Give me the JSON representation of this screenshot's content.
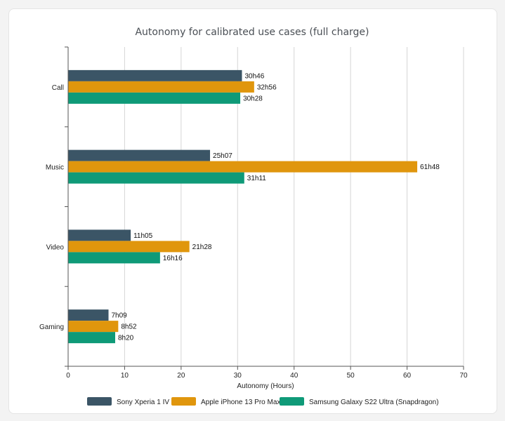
{
  "chart_data": {
    "type": "bar",
    "orientation": "horizontal",
    "title": "Autonomy for calibrated use cases (full charge)",
    "xlabel": "Autonomy (Hours)",
    "ylabel": "",
    "xlim": [
      0,
      70
    ],
    "x_ticks": [
      0,
      10,
      20,
      30,
      40,
      50,
      60,
      70
    ],
    "grid": "vertical",
    "legend_position": "bottom",
    "categories": [
      "Call",
      "Music",
      "Video",
      "Gaming"
    ],
    "series": [
      {
        "name": "Sony Xperia 1 IV",
        "color": "#3b5566",
        "values": [
          30.77,
          25.12,
          11.08,
          7.15
        ],
        "labels": [
          "30h46",
          "25h07",
          "11h05",
          "7h09"
        ]
      },
      {
        "name": "Apple iPhone 13 Pro Max",
        "color": "#e0960d",
        "values": [
          32.93,
          61.8,
          21.47,
          8.87
        ],
        "labels": [
          "32h56",
          "61h48",
          "21h28",
          "8h52"
        ]
      },
      {
        "name": "Samsung Galaxy S22 Ultra (Snapdragon)",
        "color": "#0f9a78",
        "values": [
          30.47,
          31.18,
          16.27,
          8.33
        ],
        "labels": [
          "30h28",
          "31h11",
          "16h16",
          "8h20"
        ]
      }
    ]
  }
}
